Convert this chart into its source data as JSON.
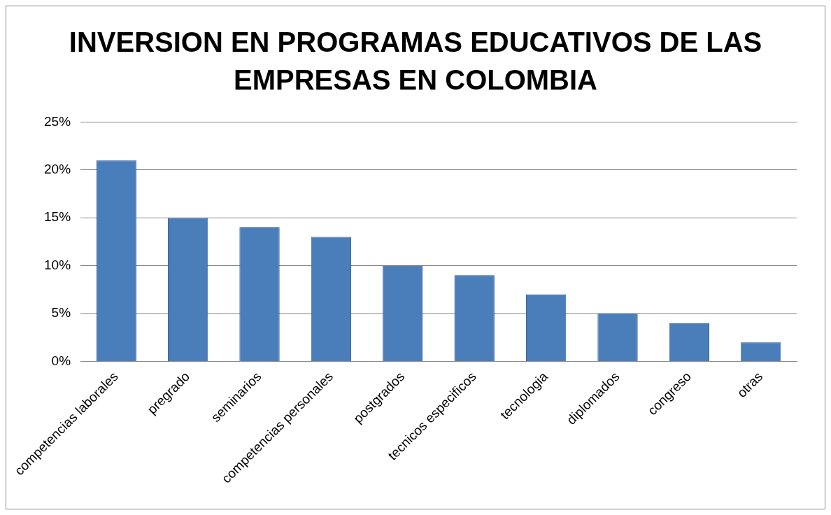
{
  "chart_data": {
    "type": "bar",
    "title": "INVERSION EN PROGRAMAS EDUCATIVOS DE LAS EMPRESAS EN COLOMBIA",
    "categories": [
      "competencias laborales",
      "pregrado",
      "seminarios",
      "competencias personales",
      "postgrados",
      "tecnicos especificos",
      "tecnologia",
      "diplomados",
      "congreso",
      "otras"
    ],
    "values": [
      21,
      15,
      14,
      13,
      10,
      9,
      7,
      5,
      4,
      2
    ],
    "color": "#4a7ebb",
    "ylim": [
      0,
      25
    ],
    "yticks": [
      {
        "value": 0,
        "label": "0%"
      },
      {
        "value": 5,
        "label": "5%"
      },
      {
        "value": 10,
        "label": "10%"
      },
      {
        "value": 15,
        "label": "15%"
      },
      {
        "value": 20,
        "label": "20%"
      },
      {
        "value": 25,
        "label": "25%"
      }
    ],
    "grid": "y",
    "legend": false
  }
}
